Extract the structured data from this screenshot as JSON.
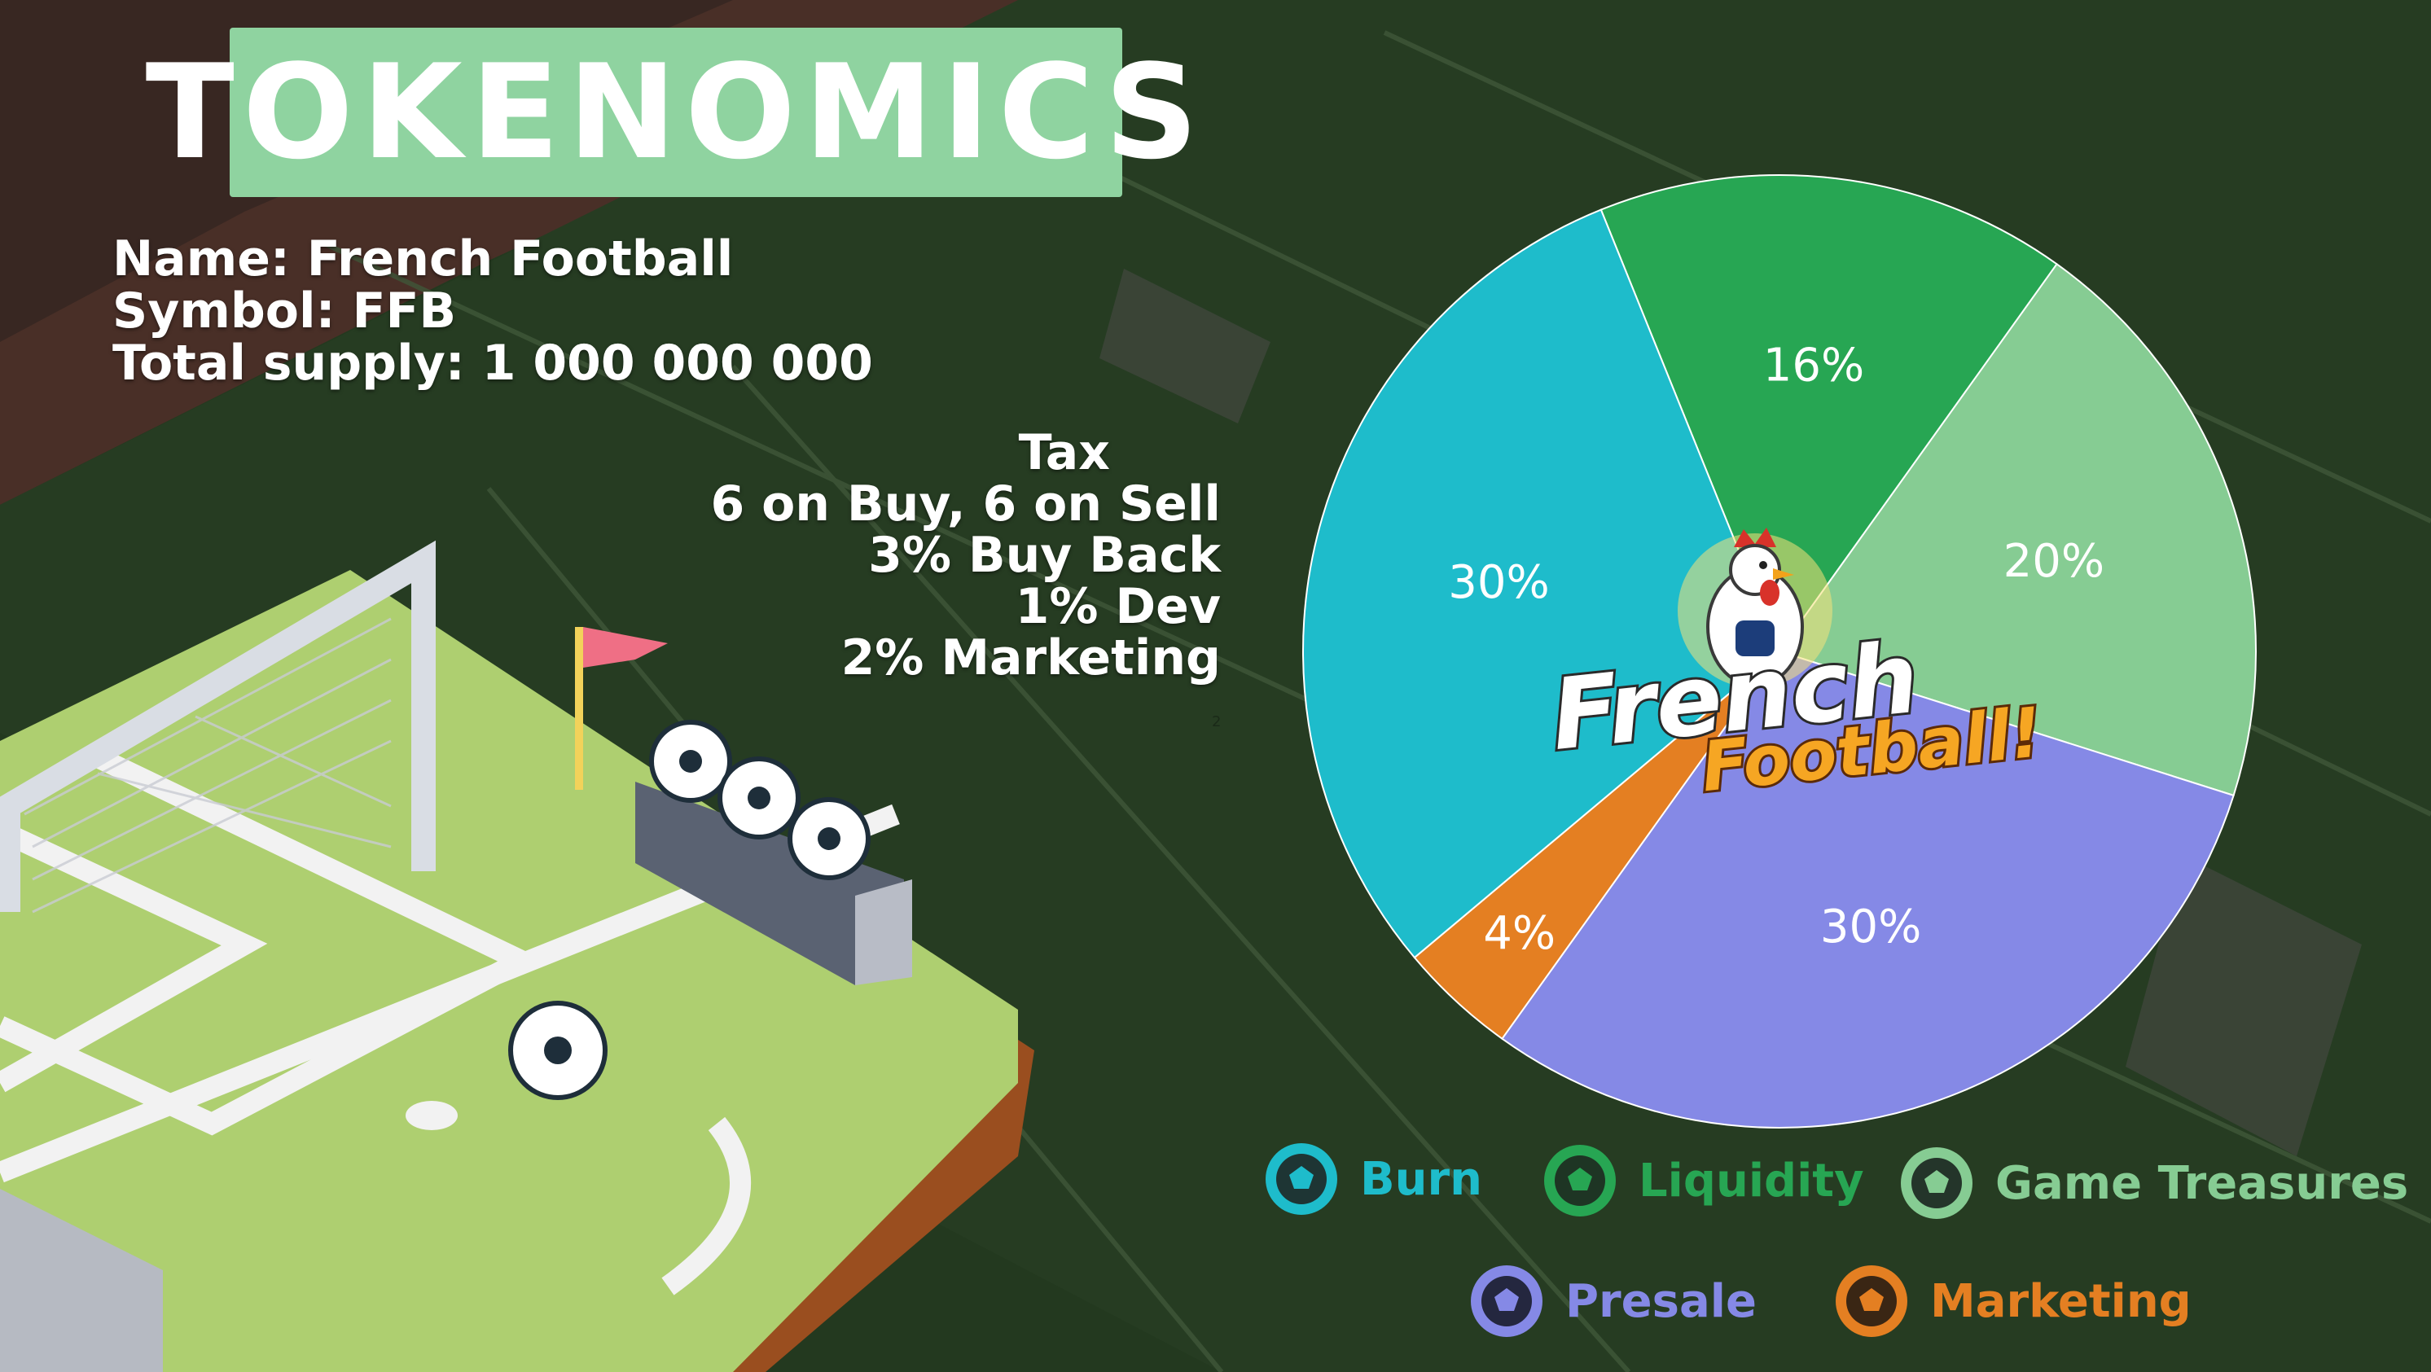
{
  "title": "TOKENOMICS",
  "token": {
    "name_line": "Name: French Football",
    "symbol_line": "Symbol: FFB",
    "supply_line": "Total supply: 1 000 000 000"
  },
  "tax": {
    "title": "Tax",
    "lines": [
      "6 on Buy, 6 on Sell",
      "3% Buy Back",
      "1% Dev",
      "2% Marketing"
    ]
  },
  "footnote": "2",
  "logo_text": [
    "French",
    "Football!"
  ],
  "chart_data": {
    "type": "pie",
    "start_angle_deg": -22,
    "slices": [
      {
        "name": "Liquidity",
        "value": 16,
        "label": "16%",
        "color": "#27a653"
      },
      {
        "name": "Game Treasures",
        "value": 20,
        "label": "20%",
        "color": "#86cc93"
      },
      {
        "name": "Presale",
        "value": 30,
        "label": "30%",
        "color": "#8589e6"
      },
      {
        "name": "Marketing",
        "value": 4,
        "label": "4%",
        "color": "#e47f22"
      },
      {
        "name": "Burn",
        "value": 30,
        "label": "30%",
        "color": "#1ebccb"
      }
    ],
    "legend": [
      {
        "label": "Burn",
        "color": "#1ebccb"
      },
      {
        "label": "Liquidity",
        "color": "#27a653"
      },
      {
        "label": "Game Treasures",
        "color": "#86cc93"
      },
      {
        "label": "Presale",
        "color": "#8589e6"
      },
      {
        "label": "Marketing",
        "color": "#e47f22"
      }
    ],
    "legend_placement": "bottom"
  }
}
